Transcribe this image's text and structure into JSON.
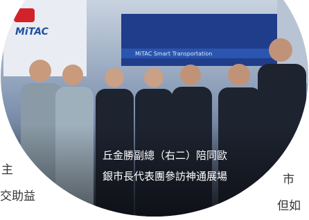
{
  "photo": {
    "sign_logo": "MiTAC",
    "sign_banner": "MiTAC Smart Transportation",
    "caption": [
      "丘金勝副總（右二）陪同歐",
      "銀市長代表團參訪神通展場"
    ]
  },
  "side_text": {
    "left": [
      "主",
      "交助益"
    ],
    "right": [
      "市",
      "但如"
    ]
  }
}
